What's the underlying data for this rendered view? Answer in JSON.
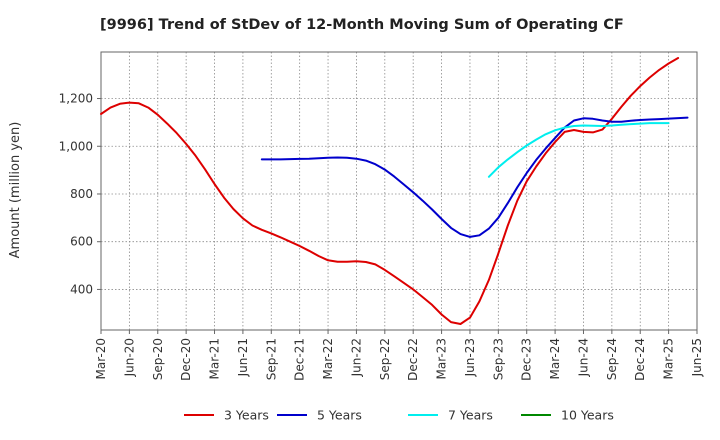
{
  "chart_data": {
    "type": "line",
    "title": "[9996]  Trend of StDev of 12-Month Moving Sum of Operating CF",
    "ylabel": "Amount (million yen)",
    "xlabel": "",
    "ylim": [
      230,
      1395
    ],
    "yticks": [
      400,
      600,
      800,
      1000,
      1200
    ],
    "ytick_labels": [
      "400",
      "600",
      "800",
      "1,000",
      "1,200"
    ],
    "x_start": "2020-03",
    "x_end": "2025-06",
    "xtick_labels": [
      "Mar-20",
      "Jun-20",
      "Sep-20",
      "Dec-20",
      "Mar-21",
      "Jun-21",
      "Sep-21",
      "Dec-21",
      "Mar-22",
      "Jun-22",
      "Sep-22",
      "Dec-22",
      "Mar-23",
      "Jun-23",
      "Sep-23",
      "Dec-23",
      "Mar-24",
      "Jun-24",
      "Sep-24",
      "Dec-24",
      "Mar-25",
      "Jun-25"
    ],
    "grid": true,
    "legend_position": "bottom",
    "series": [
      {
        "name": "3 Years",
        "color": "#dd0000",
        "start": "2020-03",
        "values": [
          1135,
          1162,
          1178,
          1183,
          1180,
          1162,
          1132,
          1095,
          1055,
          1010,
          960,
          903,
          842,
          785,
          737,
          698,
          668,
          650,
          635,
          618,
          600,
          582,
          562,
          540,
          522,
          516,
          516,
          518,
          515,
          505,
          482,
          455,
          428,
          400,
          368,
          335,
          295,
          263,
          255,
          282,
          350,
          440,
          550,
          668,
          772,
          853,
          915,
          970,
          1018,
          1060,
          1068,
          1060,
          1058,
          1070,
          1115,
          1165,
          1212,
          1252,
          1288,
          1320,
          1347,
          1370
        ]
      },
      {
        "name": "5 Years",
        "color": "#0000cc",
        "start": "2021-08",
        "values": [
          945,
          945,
          945,
          946,
          947,
          948,
          950,
          952,
          953,
          952,
          948,
          940,
          925,
          902,
          873,
          840,
          807,
          772,
          735,
          695,
          658,
          632,
          620,
          627,
          655,
          700,
          762,
          828,
          888,
          943,
          990,
          1035,
          1078,
          1108,
          1117,
          1115,
          1108,
          1103,
          1103,
          1107,
          1110,
          1112,
          1114,
          1116,
          1118,
          1120
        ]
      },
      {
        "name": "7 Years",
        "color": "#00eeee",
        "start": "2023-08",
        "values": [
          872,
          912,
          945,
          975,
          1003,
          1028,
          1050,
          1067,
          1078,
          1085,
          1087,
          1086,
          1085,
          1087,
          1090,
          1093,
          1095,
          1097,
          1097,
          1097
        ]
      },
      {
        "name": "10 Years",
        "color": "#008800",
        "start": "2025-03",
        "values": []
      }
    ]
  }
}
